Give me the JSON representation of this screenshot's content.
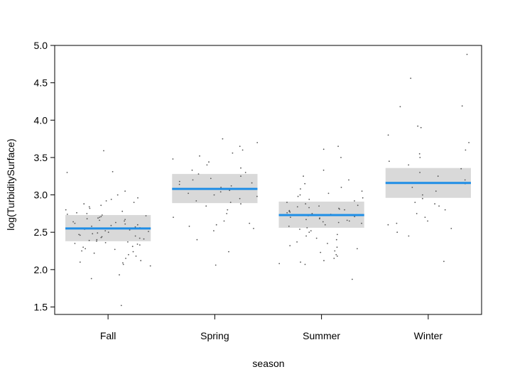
{
  "chart_data": {
    "type": "scatter",
    "subtype": "effect-plot-with-jittered-partial-residuals",
    "xlabel": "season",
    "ylabel": "log(TurbiditySurface)",
    "categories": [
      "Fall",
      "Spring",
      "Summer",
      "Winter"
    ],
    "ylim": [
      1.4,
      5.0
    ],
    "yticks": [
      1.5,
      2.0,
      2.5,
      3.0,
      3.5,
      4.0,
      4.5,
      5.0
    ],
    "ytick_labels": [
      "1.5",
      "2.0",
      "2.5",
      "3.0",
      "3.5",
      "4.0",
      "4.5",
      "5.0"
    ],
    "grid": false,
    "colors": {
      "fit": "#1f8ee6",
      "band": "#d9d9d9",
      "points": "#555555"
    },
    "effects": [
      {
        "category": "Fall",
        "fit": 2.55,
        "lower": 2.38,
        "upper": 2.73
      },
      {
        "category": "Spring",
        "fit": 3.08,
        "lower": 2.89,
        "upper": 3.28
      },
      {
        "category": "Summer",
        "fit": 2.73,
        "lower": 2.56,
        "upper": 2.91
      },
      {
        "category": "Winter",
        "fit": 3.16,
        "lower": 2.96,
        "upper": 3.36
      }
    ],
    "points": [
      {
        "category": "Fall",
        "values": [
          1.52,
          1.88,
          1.93,
          2.05,
          2.07,
          2.09,
          2.1,
          2.12,
          2.15,
          2.18,
          2.2,
          2.22,
          2.24,
          2.25,
          2.27,
          2.28,
          2.3,
          2.31,
          2.33,
          2.34,
          2.35,
          2.36,
          2.37,
          2.38,
          2.39,
          2.4,
          2.41,
          2.42,
          2.43,
          2.44,
          2.45,
          2.46,
          2.47,
          2.48,
          2.49,
          2.5,
          2.51,
          2.52,
          2.53,
          2.54,
          2.55,
          2.56,
          2.57,
          2.58,
          2.59,
          2.6,
          2.61,
          2.62,
          2.63,
          2.64,
          2.65,
          2.66,
          2.67,
          2.68,
          2.69,
          2.7,
          2.71,
          2.72,
          2.73,
          2.74,
          2.75,
          2.76,
          2.78,
          2.8,
          2.82,
          2.84,
          2.86,
          2.88,
          2.9,
          2.92,
          2.94,
          2.96,
          3.0,
          3.05,
          3.3,
          3.31,
          3.59
        ]
      },
      {
        "category": "Spring",
        "values": [
          2.06,
          2.24,
          2.4,
          2.52,
          2.55,
          2.58,
          2.6,
          2.62,
          2.65,
          2.7,
          2.75,
          2.8,
          2.85,
          2.88,
          2.9,
          2.92,
          2.95,
          2.98,
          3.0,
          3.02,
          3.04,
          3.06,
          3.08,
          3.1,
          3.12,
          3.14,
          3.16,
          3.18,
          3.2,
          3.22,
          3.25,
          3.28,
          3.3,
          3.33,
          3.36,
          3.4,
          3.44,
          3.48,
          3.52,
          3.56,
          3.6,
          3.65,
          3.7,
          3.75
        ]
      },
      {
        "category": "Summer",
        "values": [
          1.87,
          2.07,
          2.08,
          2.1,
          2.12,
          2.15,
          2.18,
          2.2,
          2.23,
          2.25,
          2.28,
          2.3,
          2.32,
          2.35,
          2.37,
          2.4,
          2.42,
          2.45,
          2.47,
          2.5,
          2.52,
          2.54,
          2.56,
          2.58,
          2.6,
          2.62,
          2.63,
          2.64,
          2.65,
          2.66,
          2.67,
          2.68,
          2.69,
          2.7,
          2.71,
          2.72,
          2.73,
          2.74,
          2.75,
          2.76,
          2.77,
          2.78,
          2.79,
          2.8,
          2.81,
          2.82,
          2.83,
          2.84,
          2.85,
          2.86,
          2.88,
          2.9,
          2.92,
          2.94,
          2.96,
          2.98,
          3.0,
          3.02,
          3.05,
          3.08,
          3.1,
          3.15,
          3.2,
          3.25,
          3.33,
          3.5,
          3.61,
          3.65
        ]
      },
      {
        "category": "Winter",
        "values": [
          2.11,
          2.45,
          2.5,
          2.55,
          2.6,
          2.62,
          2.65,
          2.7,
          2.75,
          2.8,
          2.85,
          2.88,
          2.9,
          2.95,
          3.0,
          3.05,
          3.1,
          3.15,
          3.2,
          3.25,
          3.3,
          3.35,
          3.4,
          3.45,
          3.5,
          3.55,
          3.6,
          3.7,
          3.8,
          3.9,
          3.92,
          4.18,
          4.19,
          4.56,
          4.88
        ]
      }
    ]
  }
}
